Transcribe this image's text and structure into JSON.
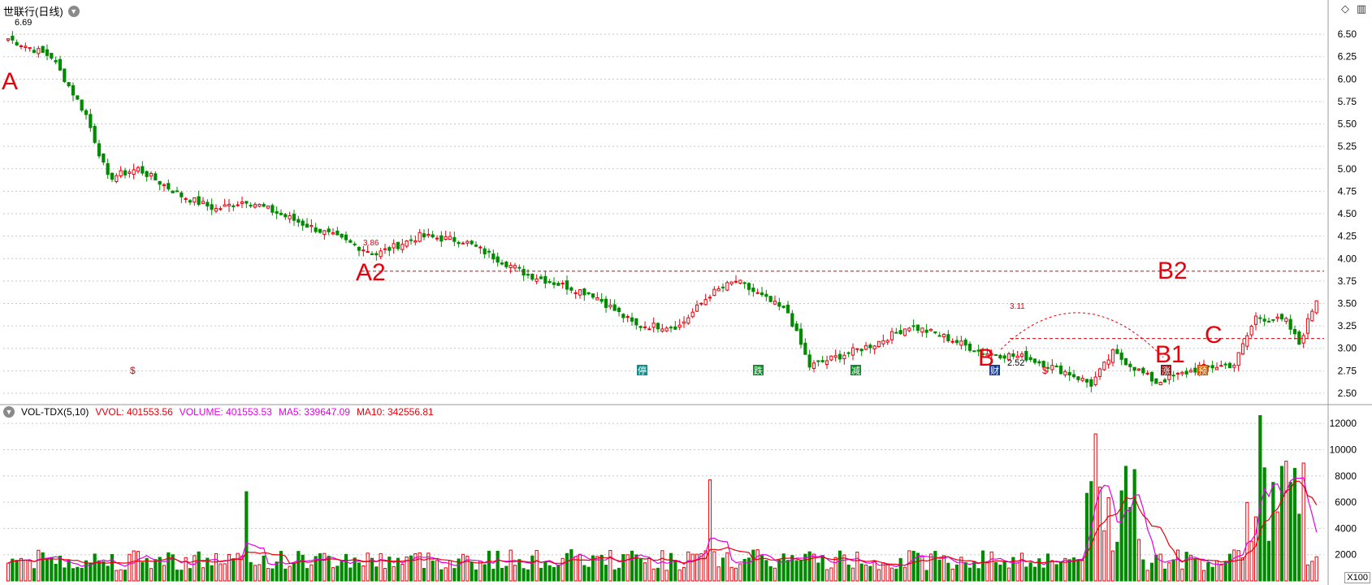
{
  "header": {
    "title": "世联行(日线)"
  },
  "vol_header": {
    "name": "VOL-TDX(5,10)",
    "items": [
      {
        "text": "VVOL: 401553.56",
        "color": "#e8000b"
      },
      {
        "text": "VOLUME: 401553.53",
        "color": "#e600e6"
      },
      {
        "text": "MA5: 339647.09",
        "color": "#e600e6"
      },
      {
        "text": "MA10: 342556.81",
        "color": "#e8000b"
      }
    ]
  },
  "unit": "X100",
  "colors": {
    "up": "#e8000b",
    "down": "#008a00",
    "ma5": "#e600e6",
    "ma10": "#e8000b",
    "grid": "#c8c8c8"
  },
  "annotations": {
    "high_label": "6.69",
    "low_label": "2.52",
    "level_label": "3.86",
    "level_label_2": "3.11",
    "letters": [
      "A",
      "A2",
      "B",
      "B1",
      "B2",
      "C"
    ],
    "markers": [
      "$",
      "停",
      "跌",
      "减",
      "财",
      "$",
      "涨",
      "预"
    ]
  },
  "chart_data": [
    {
      "type": "candlestick",
      "title": "世联行(日线)",
      "ylim": [
        2.4,
        6.7
      ],
      "yticks": [
        "6.50",
        "6.25",
        "6.00",
        "5.75",
        "5.50",
        "5.25",
        "5.00",
        "4.75",
        "4.50",
        "4.25",
        "4.00",
        "3.75",
        "3.50",
        "3.25",
        "3.00",
        "2.75",
        "2.50"
      ],
      "grid": true,
      "close_keypoints": [
        [
          0,
          6.45
        ],
        [
          10,
          6.25
        ],
        [
          18,
          5.6
        ],
        [
          23,
          4.9
        ],
        [
          30,
          5.0
        ],
        [
          40,
          4.7
        ],
        [
          48,
          4.55
        ],
        [
          55,
          4.65
        ],
        [
          70,
          4.35
        ],
        [
          85,
          4.05
        ],
        [
          95,
          4.25
        ],
        [
          105,
          4.2
        ],
        [
          120,
          3.82
        ],
        [
          135,
          3.6
        ],
        [
          145,
          3.25
        ],
        [
          155,
          3.25
        ],
        [
          162,
          3.6
        ],
        [
          168,
          3.75
        ],
        [
          180,
          3.4
        ],
        [
          185,
          2.8
        ],
        [
          200,
          3.05
        ],
        [
          208,
          3.25
        ],
        [
          215,
          3.15
        ],
        [
          225,
          2.95
        ],
        [
          235,
          2.9
        ],
        [
          245,
          2.72
        ],
        [
          250,
          2.6
        ],
        [
          255,
          2.95
        ],
        [
          265,
          2.62
        ],
        [
          275,
          2.78
        ],
        [
          283,
          2.82
        ],
        [
          288,
          3.35
        ],
        [
          295,
          3.3
        ],
        [
          298,
          3.05
        ],
        [
          302,
          3.55
        ]
      ],
      "high": 6.69,
      "low": 2.52,
      "reference_levels": [
        3.86,
        3.11
      ]
    },
    {
      "type": "bar",
      "title": "VOL-TDX(5,10)",
      "ylim": [
        0,
        13000
      ],
      "yticks": [
        "12000",
        "10000",
        "8000",
        "6000",
        "4000",
        "2000"
      ],
      "unit": "X100",
      "series": [
        {
          "name": "MA5",
          "color": "#e600e6"
        },
        {
          "name": "MA10",
          "color": "#e8000b"
        }
      ]
    }
  ]
}
